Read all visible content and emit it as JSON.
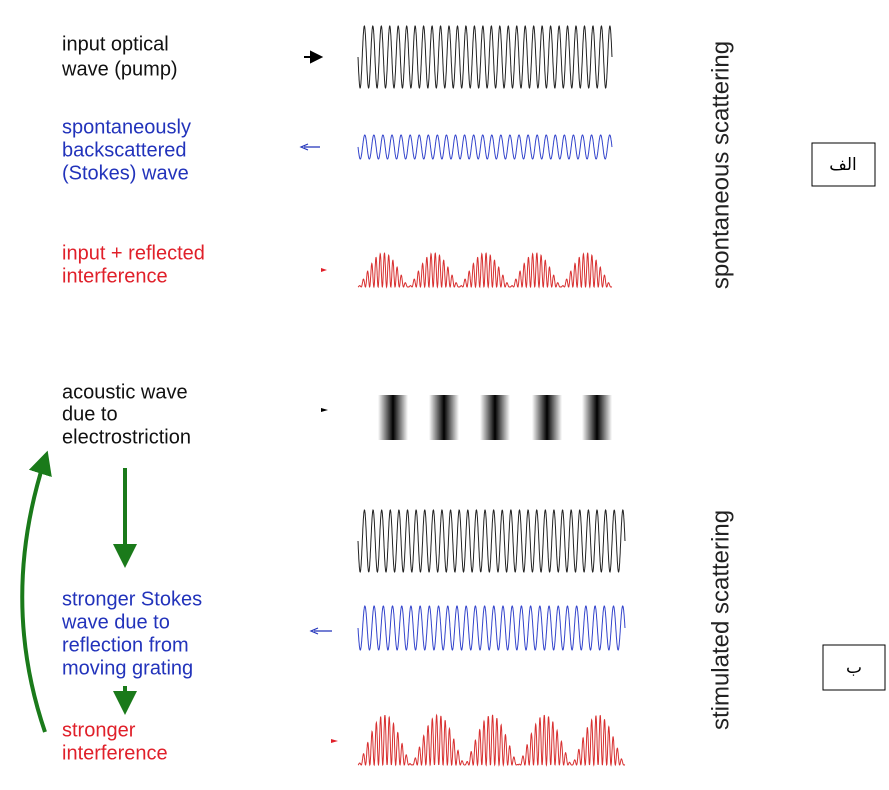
{
  "panels": [
    {
      "side_label": "spontaneous scattering",
      "box_label": "الف",
      "rows": [
        {
          "label": [
            "input optical",
            "wave (pump)"
          ]
        },
        {
          "label": [
            "spontaneously",
            "backscattered",
            "(Stokes) wave"
          ]
        },
        {
          "label": [
            "input + reflected",
            "interference"
          ]
        }
      ]
    },
    {
      "side_label": "stimulated scattering",
      "box_label": "ب",
      "rows": [
        {
          "label": [
            "acoustic wave",
            "due to",
            "electrostriction"
          ]
        },
        {
          "label": [
            "stronger Stokes",
            "wave due to",
            "reflection from",
            "moving grating"
          ]
        },
        {
          "label": [
            "stronger",
            "interference"
          ]
        }
      ]
    }
  ]
}
